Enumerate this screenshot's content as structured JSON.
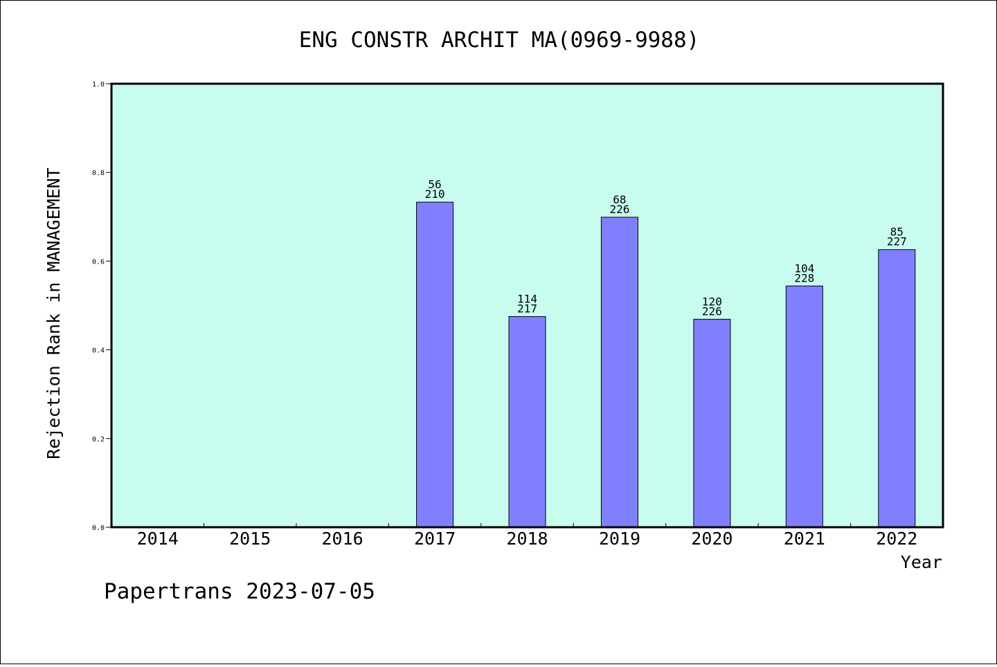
{
  "chart_data": {
    "type": "bar",
    "title": "ENG CONSTR ARCHIT MA(0969-9988)",
    "xlabel": "Year",
    "ylabel": "Rejection Rank in MANAGEMENT",
    "ylim": [
      0,
      1.0
    ],
    "yticks": [
      "0.0",
      "0.2",
      "0.4",
      "0.6",
      "0.8",
      "1.0"
    ],
    "categories": [
      "2014",
      "2015",
      "2016",
      "2017",
      "2018",
      "2019",
      "2020",
      "2021",
      "2022"
    ],
    "values": [
      null,
      null,
      null,
      0.733,
      0.475,
      0.699,
      0.469,
      0.544,
      0.626
    ],
    "labels": [
      null,
      null,
      null,
      [
        "56",
        "210"
      ],
      [
        "114",
        "217"
      ],
      [
        "68",
        "226"
      ],
      [
        "120",
        "226"
      ],
      [
        "104",
        "228"
      ],
      [
        "85",
        "227"
      ]
    ],
    "bar_color": "#8080ff",
    "plot_background": "#c8fcee",
    "grid": false,
    "legend": "none"
  },
  "footer": "Papertrans 2023-07-05"
}
